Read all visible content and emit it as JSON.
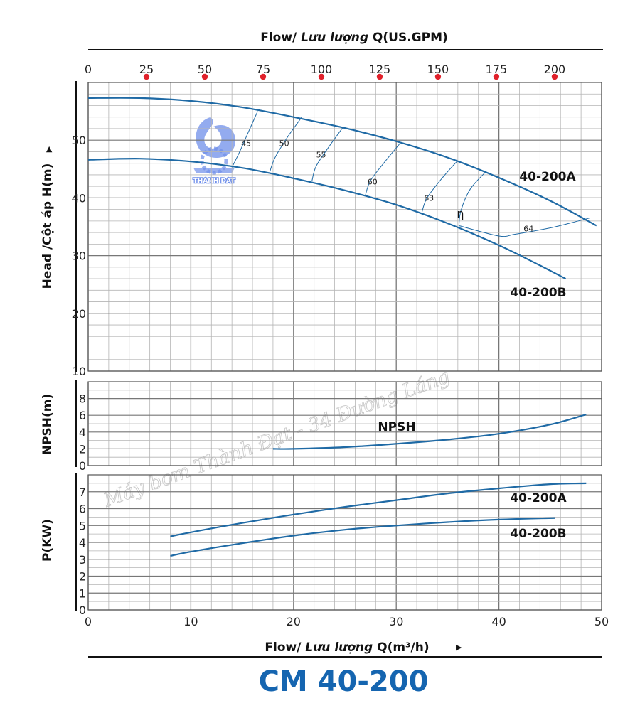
{
  "top_axis_title": {
    "prefix": "Flow/ ",
    "italic": "Lưu lượng",
    "suffix": " Q(US.GPM)"
  },
  "bottom_axis_title": {
    "prefix": "Flow/ ",
    "italic": "Lưu lượng",
    "suffix": " Q(m³/h)"
  },
  "model_title": "CM 40-200",
  "watermark": "Máy bơm Thành Đạt - 34 Đường Láng",
  "logo_text": "THANH DAT",
  "colors": {
    "curve": "#1f6aa5",
    "grid": "#999999",
    "dot": "#e0202a",
    "title": "#1565b0",
    "logo": "#6f8fea"
  },
  "chart_data": [
    {
      "type": "line",
      "panel": "head",
      "ylabel": "Head /Cột áp H(m)",
      "xlim": [
        0,
        50
      ],
      "ylim": [
        10,
        60
      ],
      "y_ticks": [
        10,
        20,
        30,
        40,
        50
      ],
      "secondary_x_ticks_usgpm": [
        0,
        25,
        50,
        75,
        100,
        125,
        150,
        175,
        200
      ],
      "series": [
        {
          "name": "40-200A",
          "x": [
            0,
            5,
            10,
            15,
            20,
            25,
            30,
            35,
            40,
            45,
            49.5
          ],
          "y": [
            57.3,
            57.3,
            56.8,
            55.7,
            54.0,
            52.1,
            49.8,
            47.0,
            43.5,
            39.5,
            35.2
          ]
        },
        {
          "name": "40-200B",
          "x": [
            0,
            5,
            10,
            15,
            20,
            25,
            30,
            35,
            40,
            44,
            46.5
          ],
          "y": [
            46.6,
            46.8,
            46.3,
            45.2,
            43.4,
            41.3,
            38.8,
            35.6,
            31.8,
            28.3,
            26.0
          ]
        }
      ],
      "efficiency_contours": [
        {
          "label": "45",
          "x": [
            14.0,
            14.7,
            15.5,
            16.5
          ],
          "y": [
            45.3,
            47.8,
            51.0,
            55.0
          ]
        },
        {
          "label": "50",
          "x": [
            17.7,
            18.2,
            19.4,
            20.8
          ],
          "y": [
            44.6,
            47.0,
            50.5,
            54.0
          ]
        },
        {
          "label": "55",
          "x": [
            21.8,
            22.2,
            23.5,
            24.8
          ],
          "y": [
            43.0,
            45.5,
            49.0,
            52.2
          ]
        },
        {
          "label": "60",
          "x": [
            27.0,
            27.5,
            29.0,
            30.3
          ],
          "y": [
            40.5,
            43.0,
            46.5,
            49.3
          ]
        },
        {
          "label": "63",
          "x": [
            32.5,
            33.0,
            34.5,
            35.9
          ],
          "y": [
            37.5,
            40.0,
            43.5,
            46.3
          ]
        },
        {
          "label": "64",
          "x": [
            36.1,
            36.3,
            37.2,
            38.7,
            40.0,
            41.5,
            43.5,
            45.5,
            47.5,
            48.8
          ],
          "y": [
            35.2,
            37.8,
            41.5,
            44.5,
            33.4,
            33.7,
            34.3,
            35.0,
            35.9,
            36.5
          ]
        }
      ],
      "eta_symbol": "η"
    },
    {
      "type": "line",
      "panel": "npsh",
      "ylabel": "NPSH(m)",
      "xlim": [
        0,
        50
      ],
      "ylim": [
        0,
        10
      ],
      "y_ticks": [
        0,
        2,
        4,
        6,
        8
      ],
      "series": [
        {
          "name": "NPSH",
          "x": [
            18,
            20,
            25,
            30,
            35,
            40,
            45,
            48.5
          ],
          "y": [
            2.0,
            2.0,
            2.2,
            2.6,
            3.1,
            3.8,
            4.9,
            6.1
          ]
        }
      ]
    },
    {
      "type": "line",
      "panel": "power",
      "ylabel": "P(KW)",
      "xlim": [
        0,
        50
      ],
      "ylim": [
        0,
        8
      ],
      "y_ticks": [
        0,
        1,
        2,
        3,
        4,
        5,
        6,
        7
      ],
      "x_ticks": [
        0,
        10,
        20,
        30,
        40,
        50
      ],
      "series": [
        {
          "name": "40-200A",
          "x": [
            8,
            10,
            15,
            20,
            25,
            30,
            35,
            40,
            45,
            48.5
          ],
          "y": [
            4.35,
            4.6,
            5.15,
            5.65,
            6.1,
            6.5,
            6.9,
            7.2,
            7.45,
            7.5
          ]
        },
        {
          "name": "40-200B",
          "x": [
            8,
            10,
            15,
            20,
            25,
            30,
            35,
            40,
            45.5
          ],
          "y": [
            3.2,
            3.45,
            3.95,
            4.4,
            4.75,
            5.0,
            5.2,
            5.35,
            5.45
          ]
        }
      ]
    }
  ]
}
